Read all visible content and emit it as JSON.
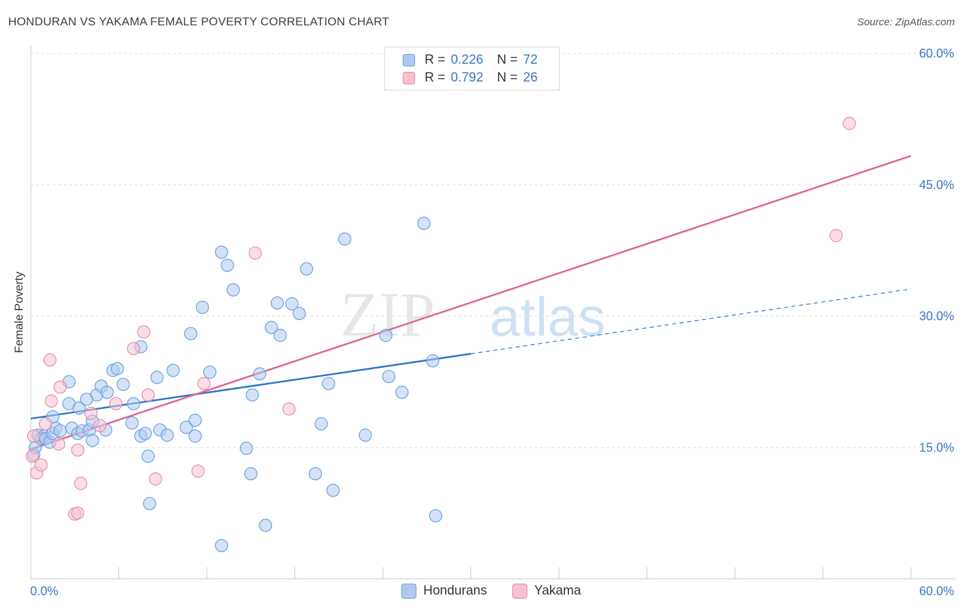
{
  "chart_data": {
    "type": "scatter",
    "title": "HONDURAN VS YAKAMA FEMALE POVERTY CORRELATION CHART",
    "source": "Source: ZipAtlas.com",
    "xlabel": "",
    "ylabel": "Female Poverty",
    "xlim": [
      0,
      60
    ],
    "ylim": [
      0,
      60
    ],
    "x_tick_labels": [
      "0.0%",
      "60.0%"
    ],
    "y_tick_labels": [
      "15.0%",
      "30.0%",
      "45.0%",
      "60.0%"
    ],
    "y_ticks": [
      15,
      30,
      45,
      60
    ],
    "watermark": {
      "part1": "ZIP",
      "part2": "atlas"
    },
    "legend": {
      "rows": [
        {
          "r_label": "R = ",
          "r_value": "0.226",
          "n_label": "N = ",
          "n_value": "72"
        },
        {
          "r_label": "R = ",
          "r_value": "0.792",
          "n_label": "N = ",
          "n_value": "26"
        }
      ]
    },
    "series": [
      {
        "name": "Hondurans",
        "color": "#6a9fdd",
        "fill": "#aecbef",
        "trend_color": "#2f73c9",
        "trend": {
          "x0": 0,
          "y0": 18.3,
          "x1": 30,
          "y1": 25.7,
          "x_dash_end": 60,
          "y_dash_end": 33.1
        },
        "points": [
          [
            0.2,
            14.2
          ],
          [
            0.3,
            15.0
          ],
          [
            0.5,
            16.4
          ],
          [
            0.7,
            16.0
          ],
          [
            0.9,
            16.3
          ],
          [
            1.0,
            16.0
          ],
          [
            1.3,
            15.6
          ],
          [
            1.5,
            16.6
          ],
          [
            1.7,
            17.2
          ],
          [
            2.0,
            16.9
          ],
          [
            2.6,
            20.0
          ],
          [
            2.8,
            17.2
          ],
          [
            3.2,
            16.6
          ],
          [
            3.5,
            16.9
          ],
          [
            2.6,
            22.5
          ],
          [
            4.0,
            17.0
          ],
          [
            4.2,
            15.8
          ],
          [
            4.5,
            21.0
          ],
          [
            4.8,
            22.0
          ],
          [
            5.2,
            21.3
          ],
          [
            5.6,
            23.8
          ],
          [
            5.9,
            24.0
          ],
          [
            6.3,
            22.2
          ],
          [
            7.0,
            20.0
          ],
          [
            7.5,
            16.3
          ],
          [
            7.8,
            16.6
          ],
          [
            8.0,
            14.0
          ],
          [
            8.6,
            23.0
          ],
          [
            8.8,
            17.0
          ],
          [
            9.3,
            16.4
          ],
          [
            9.7,
            23.8
          ],
          [
            10.6,
            17.3
          ],
          [
            10.9,
            28.0
          ],
          [
            11.2,
            18.1
          ],
          [
            11.7,
            31.0
          ],
          [
            12.2,
            23.6
          ],
          [
            13.0,
            37.3
          ],
          [
            13.4,
            35.8
          ],
          [
            13.8,
            33.0
          ],
          [
            14.7,
            14.9
          ],
          [
            15.0,
            12.0
          ],
          [
            15.1,
            21.0
          ],
          [
            15.6,
            23.4
          ],
          [
            16.4,
            28.7
          ],
          [
            16.8,
            31.5
          ],
          [
            17.0,
            27.8
          ],
          [
            17.8,
            31.4
          ],
          [
            18.3,
            30.3
          ],
          [
            18.8,
            35.4
          ],
          [
            19.8,
            17.7
          ],
          [
            19.4,
            12.0
          ],
          [
            20.3,
            22.3
          ],
          [
            20.6,
            10.1
          ],
          [
            21.4,
            38.8
          ],
          [
            22.8,
            16.4
          ],
          [
            24.2,
            27.8
          ],
          [
            24.4,
            23.1
          ],
          [
            25.3,
            21.3
          ],
          [
            26.8,
            40.6
          ],
          [
            27.4,
            24.9
          ],
          [
            27.6,
            7.2
          ],
          [
            8.1,
            8.6
          ],
          [
            13.0,
            3.8
          ],
          [
            16.0,
            6.1
          ],
          [
            11.2,
            16.3
          ],
          [
            5.1,
            17.0
          ],
          [
            6.9,
            17.8
          ],
          [
            1.5,
            18.5
          ],
          [
            3.3,
            19.5
          ],
          [
            4.2,
            18.0
          ],
          [
            7.5,
            26.5
          ],
          [
            3.8,
            20.5
          ]
        ]
      },
      {
        "name": "Yakama",
        "color": "#e98aa8",
        "fill": "#f6c1d1",
        "trend_color": "#e0628f",
        "trend": {
          "x0": 0,
          "y0": 14.8,
          "x1": 60,
          "y1": 48.3
        },
        "points": [
          [
            0.2,
            16.3
          ],
          [
            0.4,
            12.1
          ],
          [
            0.7,
            13.0
          ],
          [
            1.0,
            17.7
          ],
          [
            1.4,
            20.3
          ],
          [
            2.0,
            21.9
          ],
          [
            1.3,
            25.0
          ],
          [
            1.9,
            15.4
          ],
          [
            3.2,
            14.7
          ],
          [
            3.4,
            10.9
          ],
          [
            3.0,
            7.4
          ],
          [
            3.2,
            7.5
          ],
          [
            4.1,
            18.9
          ],
          [
            4.7,
            17.5
          ],
          [
            5.8,
            20.0
          ],
          [
            7.0,
            26.3
          ],
          [
            7.7,
            28.2
          ],
          [
            8.0,
            21.0
          ],
          [
            8.5,
            11.4
          ],
          [
            11.4,
            12.3
          ],
          [
            11.8,
            22.3
          ],
          [
            15.3,
            37.2
          ],
          [
            17.6,
            19.4
          ],
          [
            55.8,
            52.0
          ],
          [
            54.9,
            39.2
          ],
          [
            0.1,
            14.0
          ]
        ]
      }
    ]
  }
}
